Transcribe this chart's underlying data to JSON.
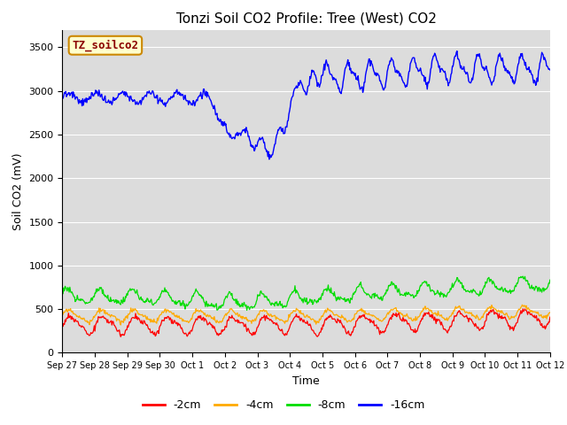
{
  "title": "Tonzi Soil CO2 Profile: Tree (West) CO2",
  "ylabel": "Soil CO2 (mV)",
  "xlabel": "Time",
  "legend_label": "TZ_soilco2",
  "bg_color": "#dcdcdc",
  "yticks": [
    0,
    500,
    1000,
    1500,
    2000,
    2500,
    3000,
    3500
  ],
  "ylim": [
    0,
    3700
  ],
  "xtick_labels": [
    "Sep 27",
    "Sep 28",
    "Sep 29",
    "Sep 30",
    "Oct 1",
    "Oct 2",
    "Oct 3",
    "Oct 4",
    "Oct 5",
    "Oct 6",
    "Oct 7",
    "Oct 8",
    "Oct 9",
    "Oct 10",
    "Oct 11",
    "Oct 12"
  ],
  "series_colors": {
    "depth_2cm": "#ff0000",
    "depth_4cm": "#ffaa00",
    "depth_8cm": "#00dd00",
    "depth_16cm": "#0000ff"
  },
  "legend_labels": [
    "-2cm",
    "-4cm",
    "-8cm",
    "-16cm"
  ]
}
